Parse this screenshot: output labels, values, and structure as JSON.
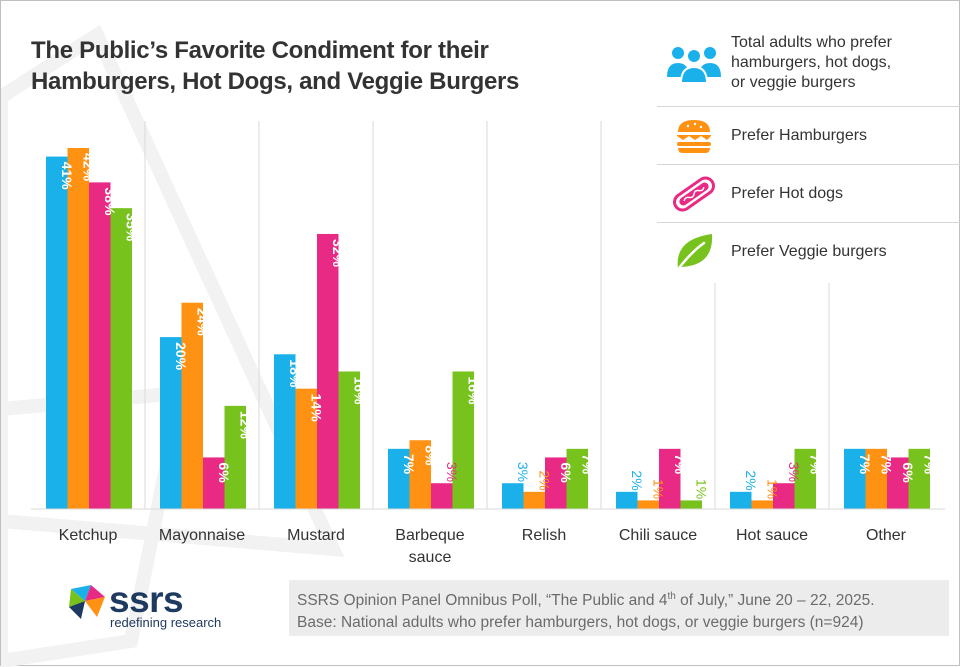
{
  "colors": {
    "total": "#1ab0ea",
    "hamburgers": "#ff9212",
    "hot_dogs": "#e82a85",
    "veggie": "#77c21c",
    "gridline": "#d9d9d9",
    "title_text": "#333333",
    "axis_text": "#333333"
  },
  "legend": {
    "items": [
      {
        "key": "total",
        "label_line1": "Total adults who prefer",
        "label_line2": "hamburgers, hot dogs,",
        "label_line3": "or veggie burgers",
        "icon": "people-group-icon"
      },
      {
        "key": "hamburgers",
        "label_line1": "Prefer Hamburgers",
        "icon": "hamburger-icon"
      },
      {
        "key": "hot_dogs",
        "label_line1": "Prefer Hot dogs",
        "icon": "hot-dog-icon"
      },
      {
        "key": "veggie",
        "label_line1": "Prefer Veggie burgers",
        "icon": "leaf-icon"
      }
    ]
  },
  "footer": {
    "source_pre": "SSRS Opinion Panel Omnibus Poll, “The Public and 4",
    "source_sup": "th",
    "source_post": " of July,” June 20 – 22, 2025.",
    "base": "Base: National adults who prefer hamburgers, hot dogs, or veggie burgers (n=924)"
  },
  "logo": {
    "word": "ssrs",
    "tagline": "redefining research"
  },
  "chart_data": {
    "type": "bar",
    "title_line1": "The Public’s Favorite Condiment for their",
    "title_line2": "Hamburgers, Hot Dogs, and Veggie Burgers",
    "categories": [
      [
        "Ketchup"
      ],
      [
        "Mayonnaise"
      ],
      [
        "Mustard"
      ],
      [
        "Barbeque",
        "sauce"
      ],
      [
        "Relish"
      ],
      [
        "Chili sauce"
      ],
      [
        "Hot sauce"
      ],
      [
        "Other"
      ]
    ],
    "series": [
      {
        "key": "total",
        "values": [
          41,
          20,
          18,
          7,
          3,
          2,
          2,
          7
        ]
      },
      {
        "key": "hamburgers",
        "values": [
          42,
          24,
          14,
          8,
          2,
          1,
          1,
          7
        ]
      },
      {
        "key": "hot_dogs",
        "values": [
          38,
          6,
          32,
          3,
          6,
          7,
          3,
          6
        ]
      },
      {
        "key": "veggie",
        "values": [
          35,
          12,
          16,
          16,
          7,
          1,
          7,
          7
        ]
      }
    ],
    "value_suffix": "%",
    "ylim": [
      0,
      42
    ],
    "legend_position": "top-right",
    "grid": "vertical category separators"
  }
}
